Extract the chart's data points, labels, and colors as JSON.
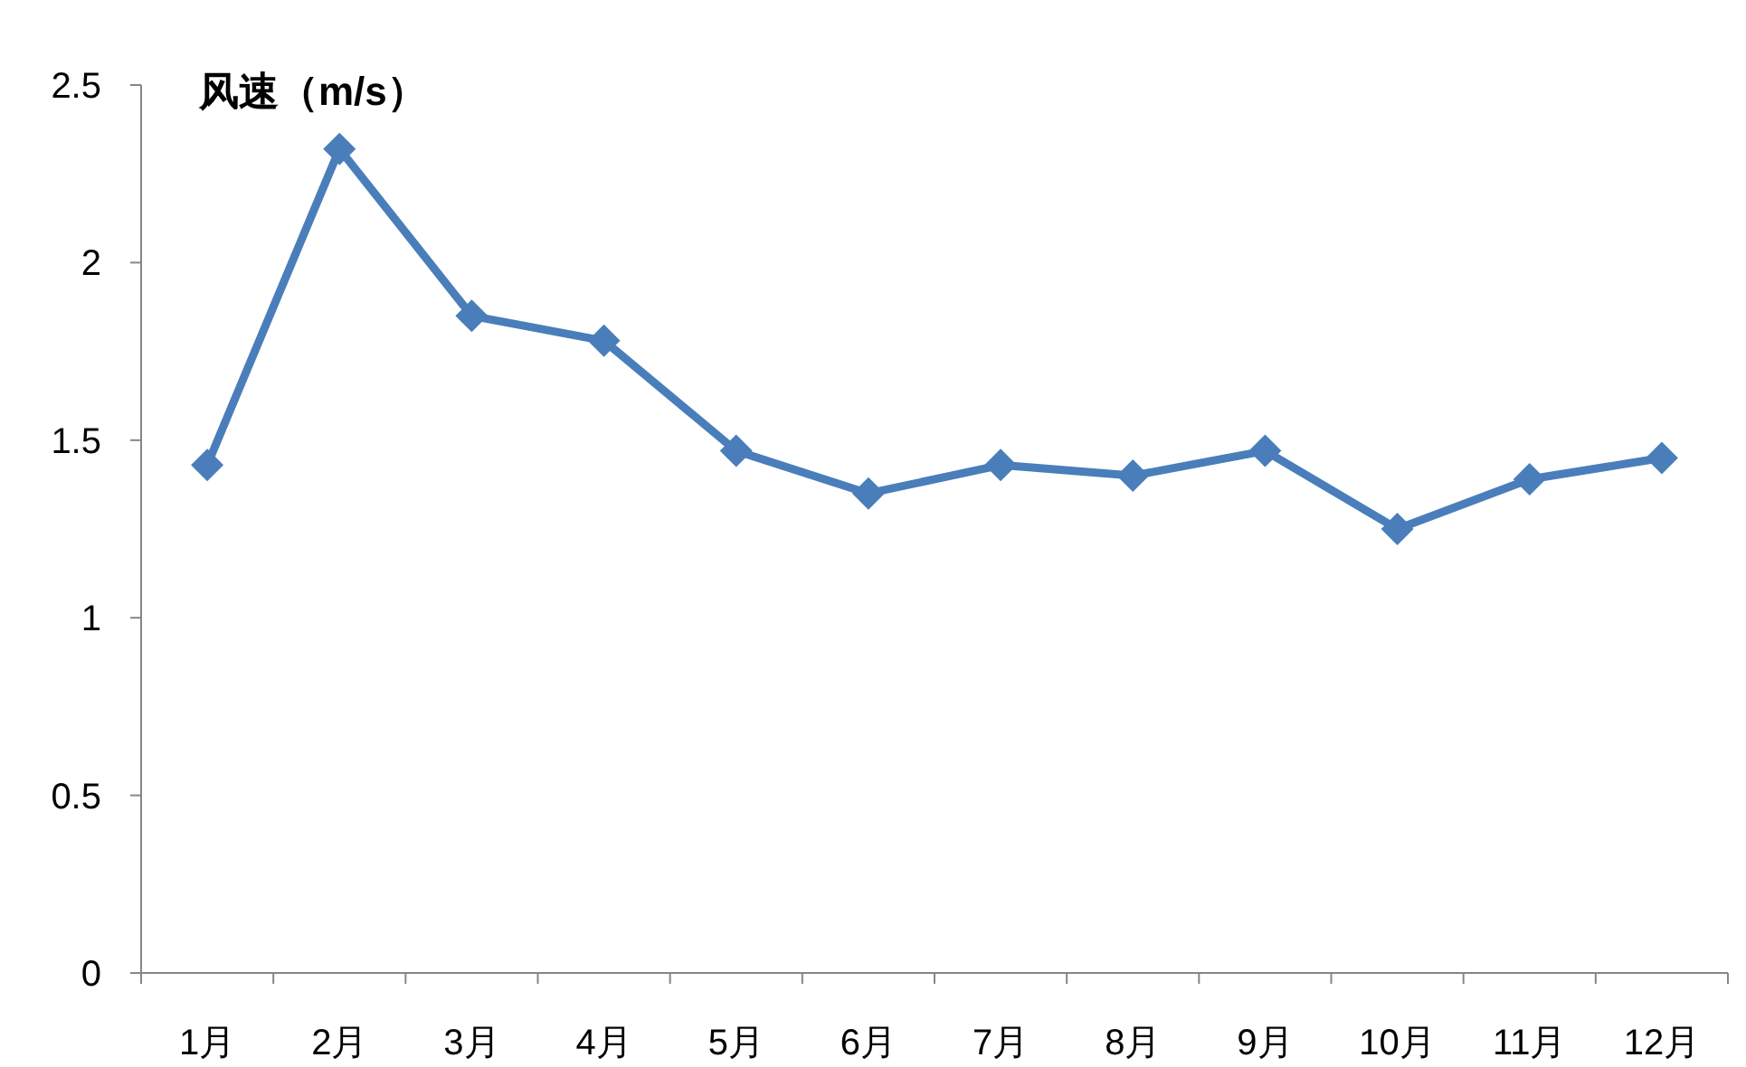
{
  "chart_data": {
    "type": "line",
    "title": "风速（m/s）",
    "categories": [
      "1月",
      "2月",
      "3月",
      "4月",
      "5月",
      "6月",
      "7月",
      "8月",
      "9月",
      "10月",
      "11月",
      "12月"
    ],
    "series": [
      {
        "color": "#4a7ebb",
        "values": [
          1.43,
          2.32,
          1.85,
          1.78,
          1.47,
          1.35,
          1.43,
          1.4,
          1.47,
          1.25,
          1.39,
          1.45
        ]
      }
    ],
    "ylim": [
      0,
      2.5
    ],
    "yticks": [
      0,
      0.5,
      1,
      1.5,
      2,
      2.5
    ],
    "marker": "diamond",
    "line_style": "solid",
    "grid": false
  }
}
